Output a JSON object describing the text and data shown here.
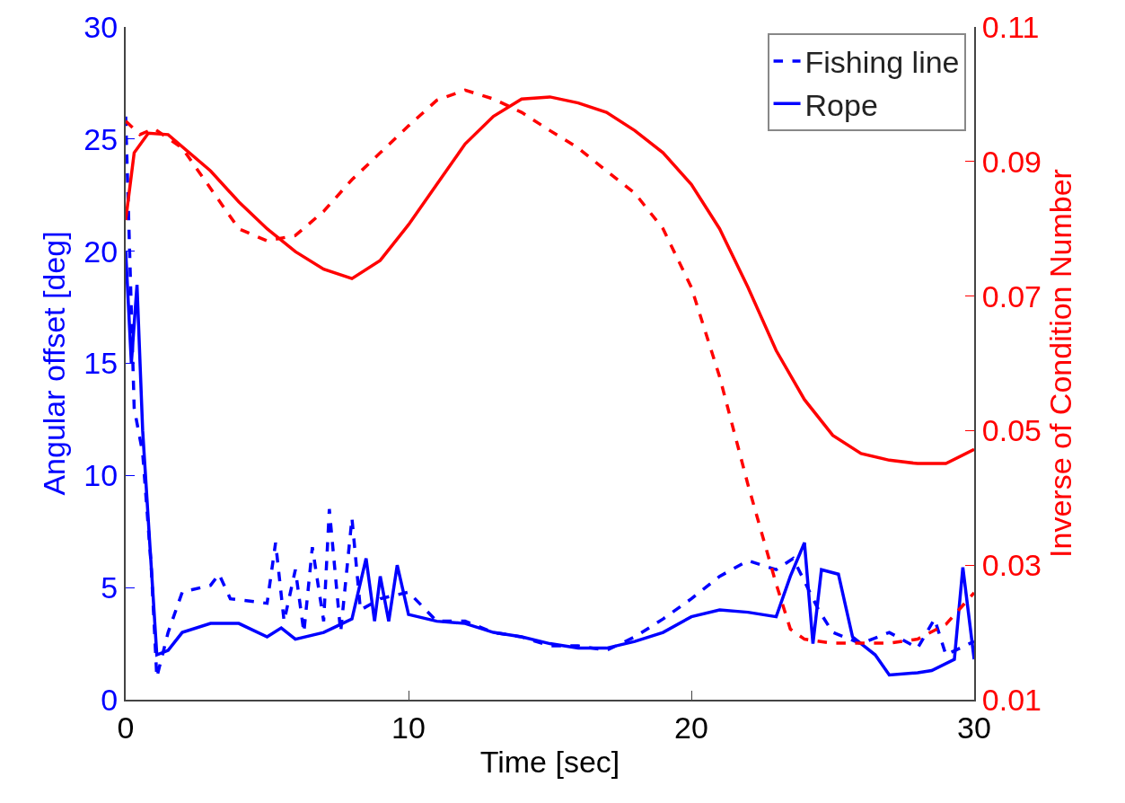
{
  "chart_data": {
    "type": "line",
    "xlabel": "Time [sec]",
    "ylabel": "Angular offset [deg]",
    "y2label": "Inverse of Condition Number",
    "xlim": [
      0,
      30
    ],
    "xticks": [
      0,
      10,
      20,
      30
    ],
    "ylim": [
      0,
      30
    ],
    "yticks": [
      0,
      5,
      10,
      15,
      20,
      25,
      30
    ],
    "y2lim": [
      0.01,
      0.11
    ],
    "y2ticks": [
      0.01,
      0.03,
      0.05,
      0.07,
      0.09,
      0.11
    ],
    "grid": false,
    "legend": "top right",
    "marker": "none",
    "series": [
      {
        "name": "Fishing line",
        "color": "#0000ff",
        "line_style": "dashed",
        "x": [
          0,
          0.3,
          0.6,
          0.9,
          1.1,
          1.5,
          2,
          3,
          3.3,
          3.7,
          5,
          5.3,
          5.6,
          6,
          6.3,
          6.6,
          7,
          7.2,
          7.6,
          8,
          8.3,
          9,
          10,
          11,
          12,
          13,
          14,
          15,
          16,
          17,
          18,
          19,
          20,
          21,
          22,
          23,
          23.6,
          24.5,
          25,
          26,
          27,
          28,
          28.6,
          29,
          30
        ],
        "values": [
          26,
          13,
          11,
          6,
          1,
          3,
          4.8,
          5.1,
          5.6,
          4.5,
          4.3,
          7,
          3.5,
          5.8,
          3,
          6.8,
          3.5,
          8.5,
          3,
          8.1,
          4,
          4.5,
          4.8,
          3.5,
          3.5,
          3,
          2.8,
          2.4,
          2.4,
          2.2,
          2.8,
          3.6,
          4.5,
          5.5,
          6.2,
          5.8,
          6.3,
          4,
          3,
          2.5,
          3,
          2.3,
          3.6,
          2,
          2.6
        ]
      },
      {
        "name": "Rope",
        "color": "#0000ff",
        "line_style": "solid",
        "x": [
          0,
          0.2,
          0.4,
          0.6,
          0.9,
          1.1,
          1.5,
          2,
          3,
          4,
          5,
          5.5,
          6,
          7,
          7.5,
          8,
          8.5,
          8.8,
          9,
          9.3,
          9.6,
          10,
          11,
          12,
          13,
          14,
          15,
          16,
          17,
          18,
          19,
          20,
          21,
          22,
          23,
          23.5,
          24,
          24.3,
          24.6,
          25.2,
          25.7,
          26.5,
          27,
          28,
          28.5,
          29.3,
          29.6,
          30
        ],
        "values": [
          20,
          15,
          18.5,
          12,
          6,
          2,
          2.2,
          3,
          3.4,
          3.4,
          2.8,
          3.2,
          2.7,
          3,
          3.3,
          3.6,
          6.3,
          3.5,
          5.5,
          3.5,
          6,
          3.8,
          3.5,
          3.4,
          3,
          2.8,
          2.5,
          2.3,
          2.3,
          2.6,
          3,
          3.7,
          4,
          3.9,
          3.7,
          5.5,
          7,
          2.5,
          5.8,
          5.6,
          2.8,
          2,
          1.1,
          1.2,
          1.3,
          1.8,
          5.9,
          1.8
        ]
      },
      {
        "color": "#ff0000",
        "line_style": "dashed",
        "axis": "y2",
        "x": [
          0,
          0.5,
          1,
          2,
          3,
          4,
          5,
          6,
          7,
          8,
          9,
          10,
          11,
          12,
          13,
          14,
          15,
          16,
          17,
          18,
          19,
          20,
          21,
          22,
          23,
          23.5,
          24,
          25,
          27,
          28,
          29,
          30
        ],
        "values": [
          0.096,
          0.094,
          0.0949,
          0.092,
          0.086,
          0.08,
          0.0782,
          0.079,
          0.0826,
          0.0873,
          0.0913,
          0.0953,
          0.0991,
          0.1006,
          0.0993,
          0.0973,
          0.0946,
          0.092,
          0.0886,
          0.0853,
          0.08,
          0.0713,
          0.058,
          0.042,
          0.0272,
          0.0205,
          0.019,
          0.0184,
          0.0184,
          0.019,
          0.0212,
          0.0259
        ]
      },
      {
        "color": "#ff0000",
        "line_style": "solid",
        "axis": "y2",
        "x": [
          0,
          0.3,
          0.8,
          1.5,
          3,
          4,
          5,
          6,
          7,
          8,
          9,
          10,
          11,
          12,
          13,
          14,
          15,
          16,
          17,
          18,
          19,
          20,
          21,
          22,
          23,
          24,
          25,
          26,
          27,
          28,
          29,
          30
        ],
        "values": [
          0.0813,
          0.0913,
          0.0942,
          0.094,
          0.0886,
          0.084,
          0.08,
          0.0766,
          0.074,
          0.0726,
          0.0753,
          0.0806,
          0.0866,
          0.0926,
          0.0967,
          0.0993,
          0.0996,
          0.0987,
          0.0973,
          0.0946,
          0.0913,
          0.0866,
          0.08,
          0.0713,
          0.0619,
          0.0546,
          0.0493,
          0.0466,
          0.0456,
          0.0451,
          0.0451,
          0.0472
        ]
      }
    ]
  }
}
